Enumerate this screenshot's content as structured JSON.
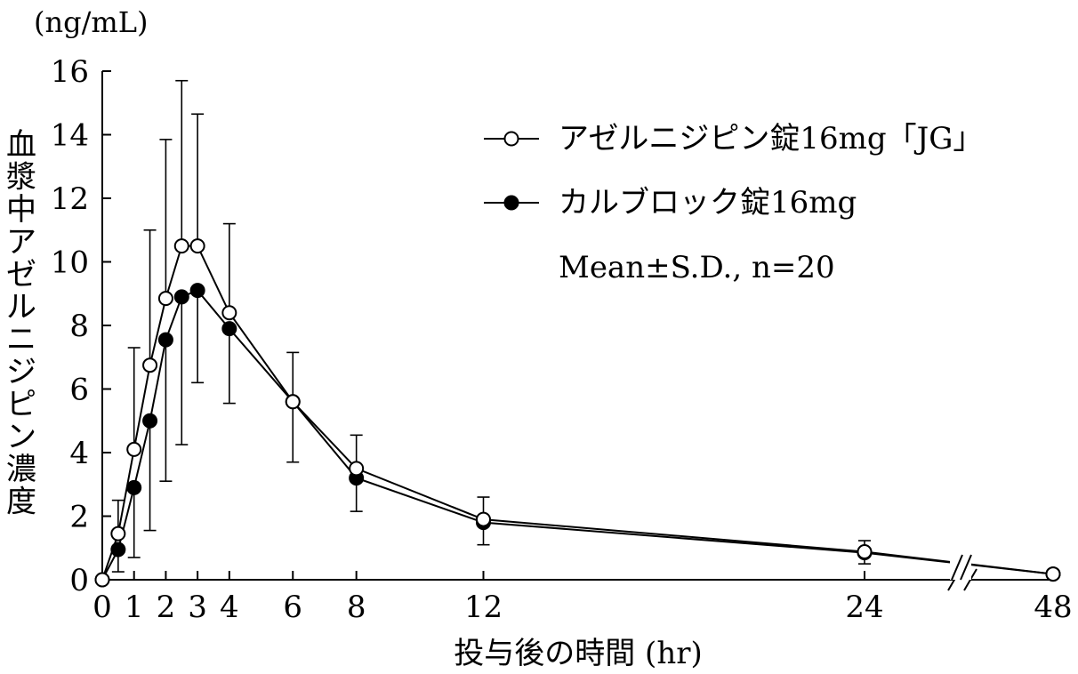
{
  "chart_data": {
    "type": "line",
    "ylabel": "血漿中アゼルニジピン濃度",
    "yunit": "(ng/mL)",
    "xlabel": "投与後の時間 (hr)",
    "ylim": [
      0,
      16
    ],
    "yticks": [
      0,
      2,
      4,
      6,
      8,
      10,
      12,
      14,
      16
    ],
    "xticks": [
      0,
      1,
      2,
      3,
      4,
      6,
      8,
      12,
      24,
      48
    ],
    "x_axis_break": {
      "between": [
        24,
        48
      ],
      "symbol": "//"
    },
    "grid": false,
    "legend_position": "top-right",
    "annotation": "Mean±S.D., n=20",
    "series": [
      {
        "name": "アゼルニジピン錠16mg「JG」",
        "marker": "open-circle",
        "points": [
          {
            "x": 0,
            "y": 0,
            "sd": 0
          },
          {
            "x": 0.5,
            "y": 1.45,
            "sd": 1.05
          },
          {
            "x": 1,
            "y": 4.1,
            "sd": 3.2
          },
          {
            "x": 1.5,
            "y": 6.75,
            "sd": 4.25
          },
          {
            "x": 2,
            "y": 8.85,
            "sd": 5.0
          },
          {
            "x": 2.5,
            "y": 10.5,
            "sd": 5.2
          },
          {
            "x": 3,
            "y": 10.5,
            "sd": 4.15
          },
          {
            "x": 4,
            "y": 8.4,
            "sd": 2.8
          },
          {
            "x": 6,
            "y": 5.6,
            "sd": 1.55
          },
          {
            "x": 8,
            "y": 3.5,
            "sd": 1.05
          },
          {
            "x": 12,
            "y": 1.9,
            "sd": 0.7
          },
          {
            "x": 24,
            "y": 0.88,
            "sd": 0.35
          },
          {
            "x": 48,
            "y": 0.18,
            "sd": 0
          }
        ]
      },
      {
        "name": "カルブロック錠16mg",
        "marker": "filled-circle",
        "points": [
          {
            "x": 0,
            "y": 0,
            "sd": 0
          },
          {
            "x": 0.5,
            "y": 0.95,
            "sd": 0.7
          },
          {
            "x": 1,
            "y": 2.9,
            "sd": 2.2
          },
          {
            "x": 1.5,
            "y": 5.0,
            "sd": 3.45
          },
          {
            "x": 2,
            "y": 7.55,
            "sd": 4.45
          },
          {
            "x": 2.5,
            "y": 8.9,
            "sd": 4.65
          },
          {
            "x": 3,
            "y": 9.1,
            "sd": 2.9
          },
          {
            "x": 4,
            "y": 7.9,
            "sd": 2.35
          },
          {
            "x": 6,
            "y": 5.6,
            "sd": 1.9
          },
          {
            "x": 8,
            "y": 3.2,
            "sd": 1.05
          },
          {
            "x": 12,
            "y": 1.8,
            "sd": 0.7
          },
          {
            "x": 24,
            "y": 0.85,
            "sd": 0.35
          },
          {
            "x": 48,
            "y": 0.18,
            "sd": 0
          }
        ]
      }
    ]
  }
}
